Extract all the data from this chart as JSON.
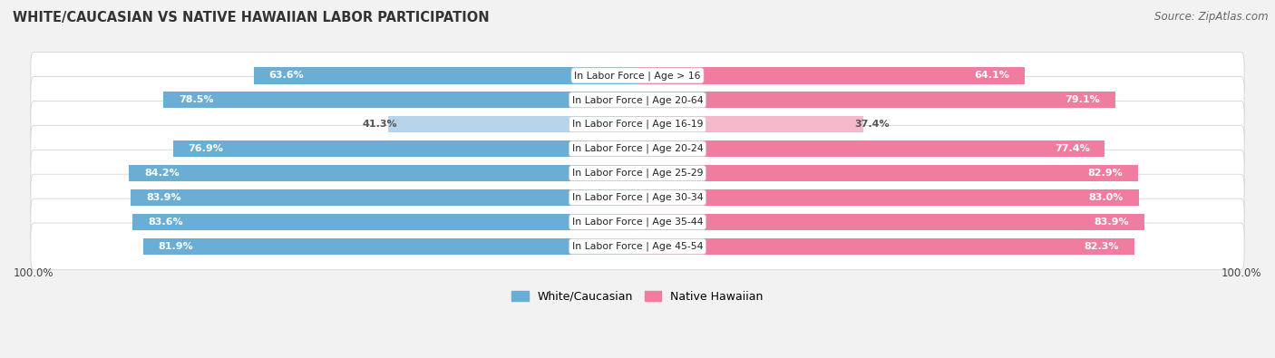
{
  "title": "White/Caucasian vs Native Hawaiian Labor Participation",
  "title_display": "WHITE/CAUCASIAN VS NATIVE HAWAIIAN LABOR PARTICIPATION",
  "source": "Source: ZipAtlas.com",
  "categories": [
    "In Labor Force | Age > 16",
    "In Labor Force | Age 20-64",
    "In Labor Force | Age 16-19",
    "In Labor Force | Age 20-24",
    "In Labor Force | Age 25-29",
    "In Labor Force | Age 30-34",
    "In Labor Force | Age 35-44",
    "In Labor Force | Age 45-54"
  ],
  "white_values": [
    63.6,
    78.5,
    41.3,
    76.9,
    84.2,
    83.9,
    83.6,
    81.9
  ],
  "hawaiian_values": [
    64.1,
    79.1,
    37.4,
    77.4,
    82.9,
    83.0,
    83.9,
    82.3
  ],
  "white_color_strong": "#6aaed6",
  "white_color_light": "#b8d4ea",
  "hawaiian_color_strong": "#f07ca0",
  "hawaiian_color_light": "#f5b8cb",
  "max_val": 100.0,
  "background_color": "#f2f2f2",
  "legend_white": "White/Caucasian",
  "legend_hawaiian": "Native Hawaiian"
}
